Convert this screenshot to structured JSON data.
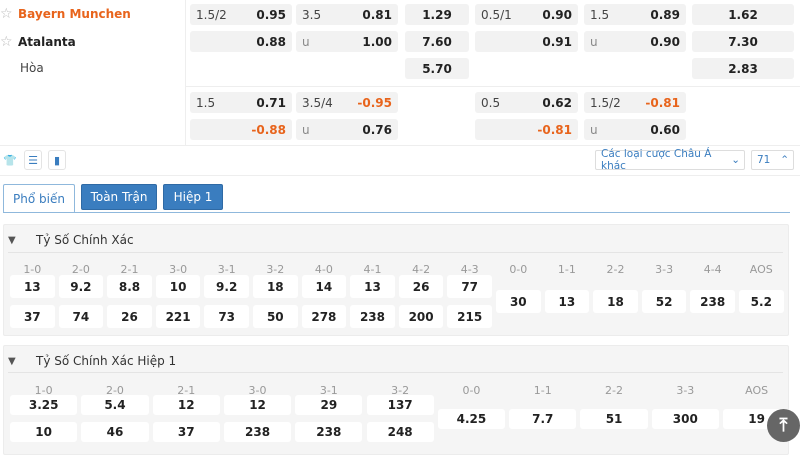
{
  "match": {
    "home": "Bayern Munchen",
    "away": "Atalanta",
    "draw": "Hòa",
    "home_color": "#e8641c",
    "main_rows": [
      [
        {
          "l": "1.5/2",
          "r": "0.95"
        },
        {
          "l": "3.5",
          "r": "0.81"
        },
        {
          "r": "1.29"
        },
        {
          "l": "0.5/1",
          "r": "0.90"
        },
        {
          "l": "1.5",
          "r": "0.89"
        },
        {
          "r": "1.62"
        }
      ],
      [
        {
          "l": "",
          "r": "0.88"
        },
        {
          "l": "u",
          "r": "1.00"
        },
        {
          "r": "7.60"
        },
        {
          "l": "",
          "r": "0.91"
        },
        {
          "l": "u",
          "r": "0.90"
        },
        {
          "r": "7.30"
        }
      ],
      [
        null,
        null,
        {
          "r": "5.70"
        },
        null,
        null,
        {
          "r": "2.83"
        }
      ]
    ],
    "alt_rows": [
      [
        {
          "l": "1.5",
          "r": "0.71"
        },
        {
          "l": "3.5/4",
          "r": "-0.95"
        },
        null,
        {
          "l": "0.5",
          "r": "0.62"
        },
        {
          "l": "1.5/2",
          "r": "-0.81"
        },
        null
      ],
      [
        {
          "l": "",
          "r": "-0.88"
        },
        {
          "l": "u",
          "r": "0.76"
        },
        null,
        {
          "l": "",
          "r": "-0.81"
        },
        {
          "l": "u",
          "r": "0.60"
        },
        null
      ]
    ]
  },
  "toolbar": {
    "icons": [
      "jersey-icon",
      "list-icon",
      "stats-icon"
    ],
    "market_select": "Các loại cược Châu Á khác",
    "market_count": "71"
  },
  "tabs": [
    {
      "label": "Phổ biến",
      "active": true
    },
    {
      "label": "Toàn Trận",
      "active": false
    },
    {
      "label": "Hiệp 1",
      "active": false
    }
  ],
  "sections": [
    {
      "title": "Tỷ Số Chính Xác",
      "labels": [
        "1-0",
        "2-0",
        "2-1",
        "3-0",
        "3-1",
        "3-2",
        "4-0",
        "4-1",
        "4-2",
        "4-3",
        "0-0",
        "1-1",
        "2-2",
        "3-3",
        "4-4",
        "AOS"
      ],
      "home": [
        "13",
        "9.2",
        "8.8",
        "10",
        "9.2",
        "18",
        "14",
        "13",
        "26",
        "77"
      ],
      "away": [
        "37",
        "74",
        "26",
        "221",
        "73",
        "50",
        "278",
        "238",
        "200",
        "215"
      ],
      "single": [
        "30",
        "13",
        "18",
        "52",
        "238",
        "5.2"
      ]
    },
    {
      "title": "Tỷ Số Chính Xác Hiệp 1",
      "labels": [
        "1-0",
        "2-0",
        "2-1",
        "3-0",
        "3-1",
        "3-2",
        "0-0",
        "1-1",
        "2-2",
        "3-3",
        "AOS"
      ],
      "home": [
        "3.25",
        "5.4",
        "12",
        "12",
        "29",
        "137"
      ],
      "away": [
        "10",
        "46",
        "37",
        "238",
        "238",
        "248"
      ],
      "single": [
        "4.25",
        "7.7",
        "51",
        "300",
        "19"
      ]
    }
  ]
}
